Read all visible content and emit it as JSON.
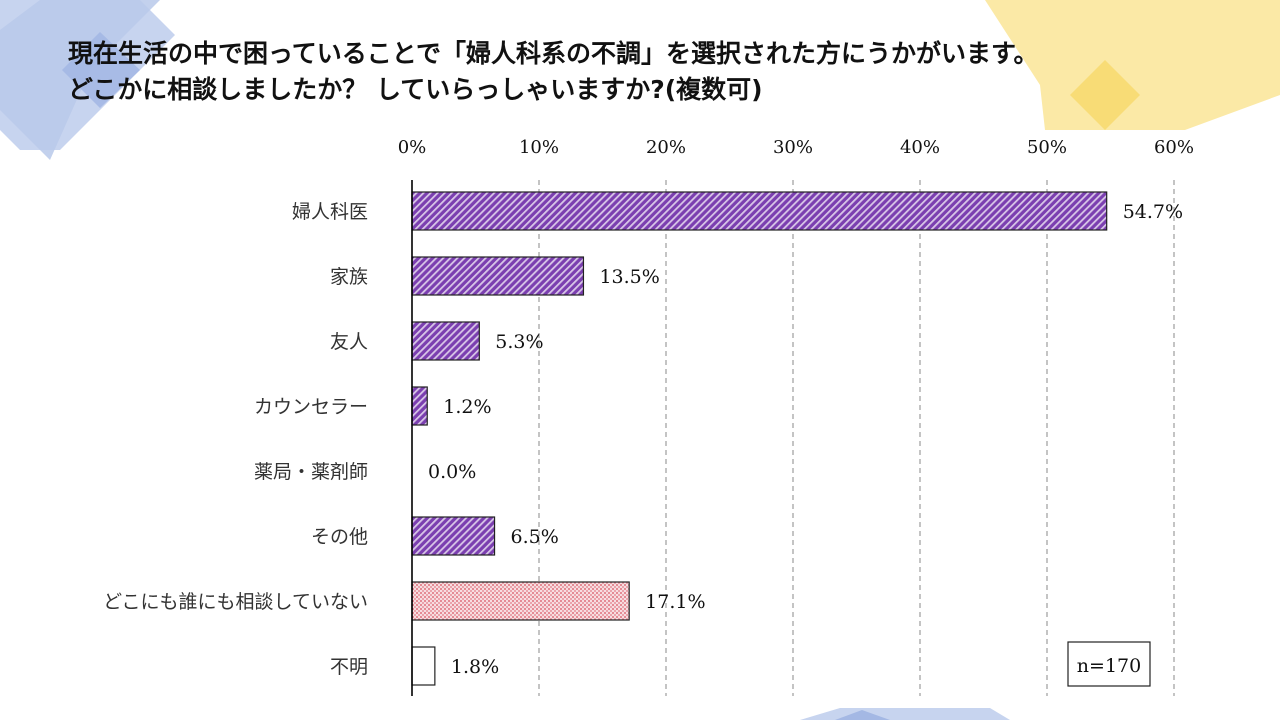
{
  "title": {
    "line1": "現在生活の中で困っていることで「婦人科系の不調」を選択された方にうかがいます。",
    "line2": "どこかに相談しましたか？ していらっしゃいますか?(複数可)"
  },
  "colors": {
    "purple_bar": "#7b3fb0",
    "pink_bar": "#e8a0a8",
    "axis": "#000000",
    "grid": "#888888",
    "deco_blue": "#b9c9ea",
    "deco_blue_dark": "#a4b8e4",
    "deco_yellow": "#fbe9a6",
    "deco_yellow_dark": "#f8dc76"
  },
  "chart_data": {
    "type": "bar",
    "orientation": "horizontal",
    "categories": [
      "婦人科医",
      "家族",
      "友人",
      "カウンセラー",
      "薬局・薬剤師",
      "その他",
      "どこにも誰にも相談していない",
      "不明"
    ],
    "values": [
      54.7,
      13.5,
      5.3,
      1.2,
      0.0,
      6.5,
      17.1,
      1.8
    ],
    "value_labels": [
      "54.7%",
      "13.5%",
      "5.3%",
      "1.2%",
      "0.0%",
      "6.5%",
      "17.1%",
      "1.8%"
    ],
    "bar_styles": [
      "purple-hatch",
      "purple-hatch",
      "purple-hatch",
      "purple-hatch",
      "purple-hatch",
      "purple-hatch",
      "pink-dots",
      "white"
    ],
    "xlim": [
      0,
      60
    ],
    "xticks": [
      0,
      10,
      20,
      30,
      40,
      50,
      60
    ],
    "xtick_labels": [
      "0%",
      "10%",
      "20%",
      "30%",
      "40%",
      "50%",
      "60%"
    ],
    "tick_position": "top",
    "grid": true,
    "grid_style": "dashed vertical",
    "note": "n=170",
    "note_placement": "bottom-right"
  }
}
